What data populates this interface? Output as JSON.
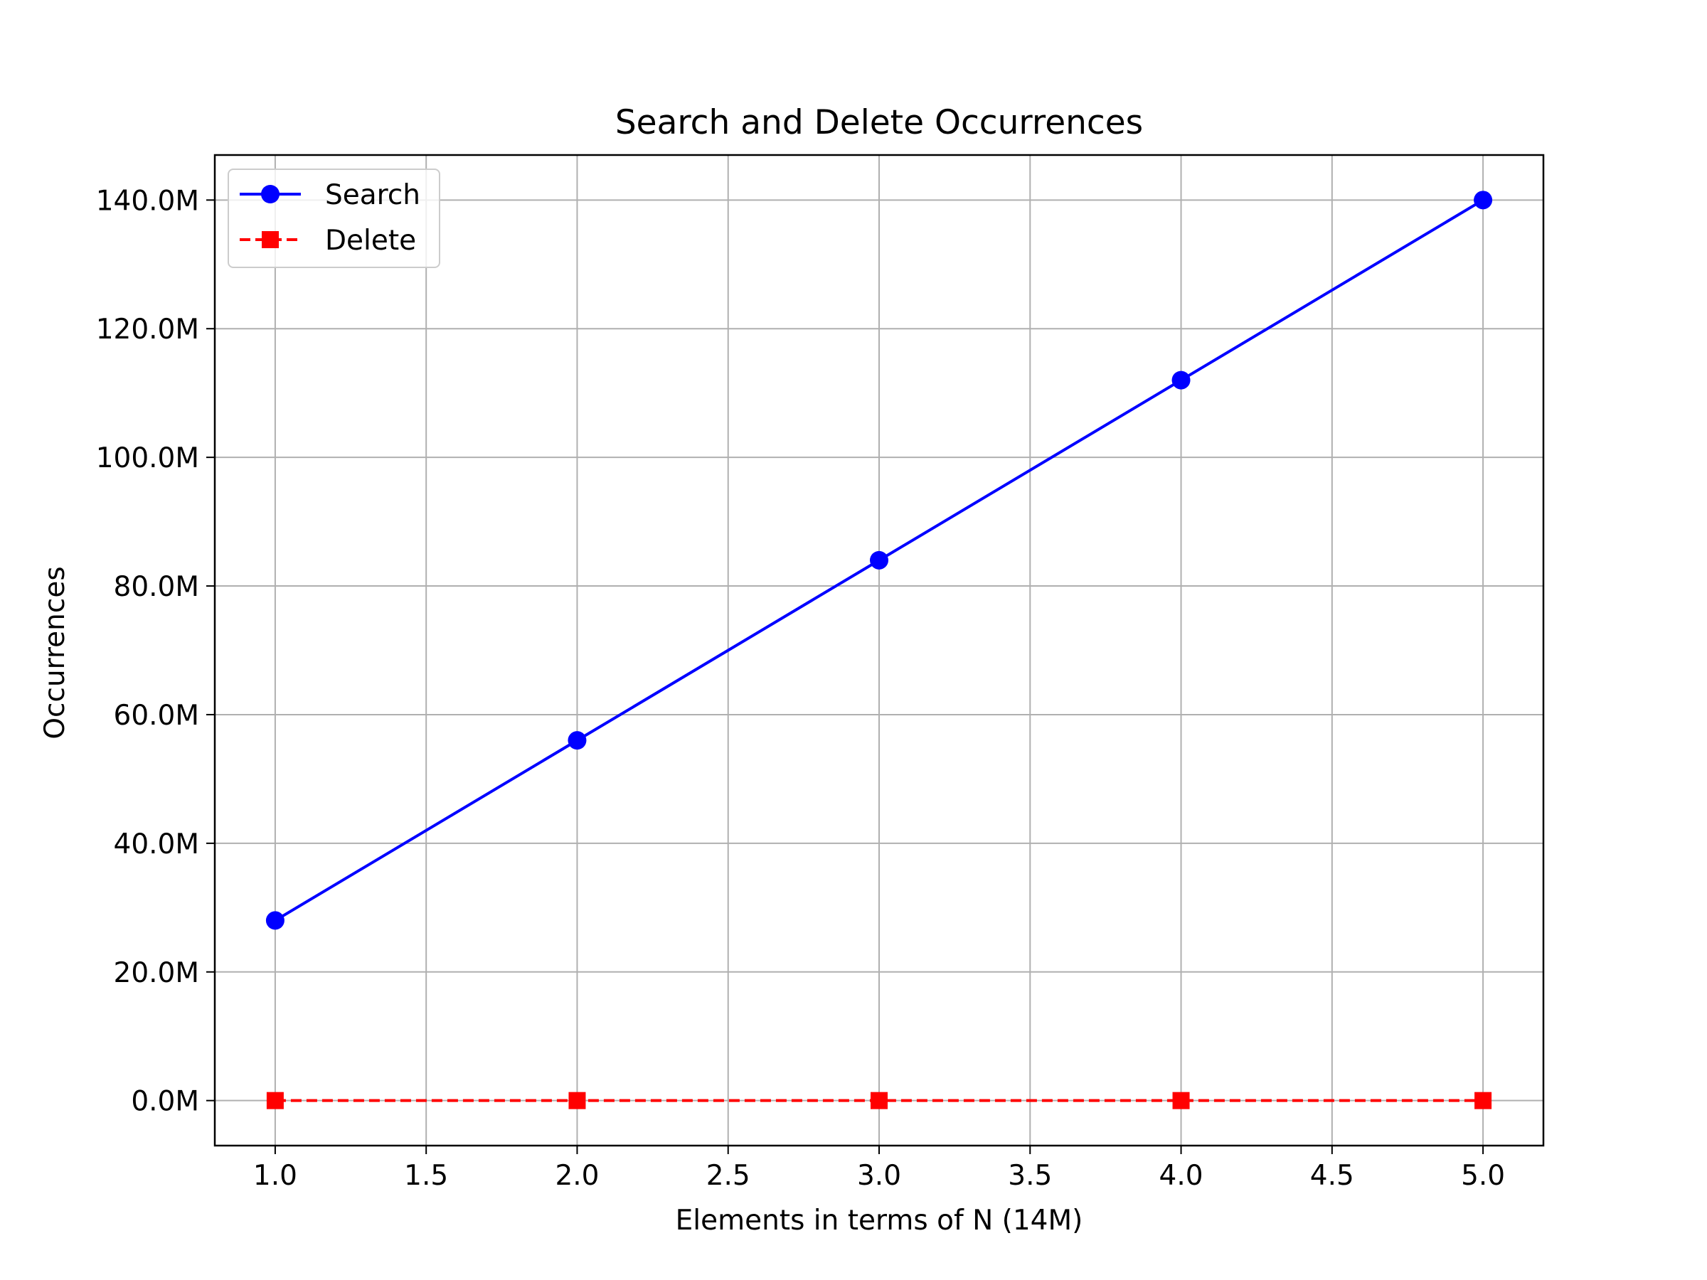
{
  "chart_data": {
    "type": "line",
    "title": "Search and Delete Occurrences",
    "xlabel": "Elements in terms of N (14M)",
    "ylabel": "Occurrences",
    "x": [
      1.0,
      2.0,
      3.0,
      4.0,
      5.0
    ],
    "xlim": [
      0.8,
      5.2
    ],
    "ylim": [
      -7000000,
      147000000
    ],
    "x_ticks": [
      1.0,
      1.5,
      2.0,
      2.5,
      3.0,
      3.5,
      4.0,
      4.5,
      5.0
    ],
    "x_tick_labels": [
      "1.0",
      "1.5",
      "2.0",
      "2.5",
      "3.0",
      "3.5",
      "4.0",
      "4.5",
      "5.0"
    ],
    "y_ticks": [
      0,
      20000000,
      40000000,
      60000000,
      80000000,
      100000000,
      120000000,
      140000000
    ],
    "y_tick_labels": [
      "0.0M",
      "20.0M",
      "40.0M",
      "60.0M",
      "80.0M",
      "100.0M",
      "120.0M",
      "140.0M"
    ],
    "grid": true,
    "legend_position": "top-left",
    "series": [
      {
        "name": "Search",
        "values": [
          28000000,
          56000000,
          84000000,
          112000000,
          140000000
        ],
        "color": "#0000ff",
        "linestyle": "solid",
        "marker": "circle"
      },
      {
        "name": "Delete",
        "values": [
          0,
          0,
          0,
          0,
          0
        ],
        "color": "#ff0000",
        "linestyle": "dashed",
        "marker": "square"
      }
    ]
  }
}
